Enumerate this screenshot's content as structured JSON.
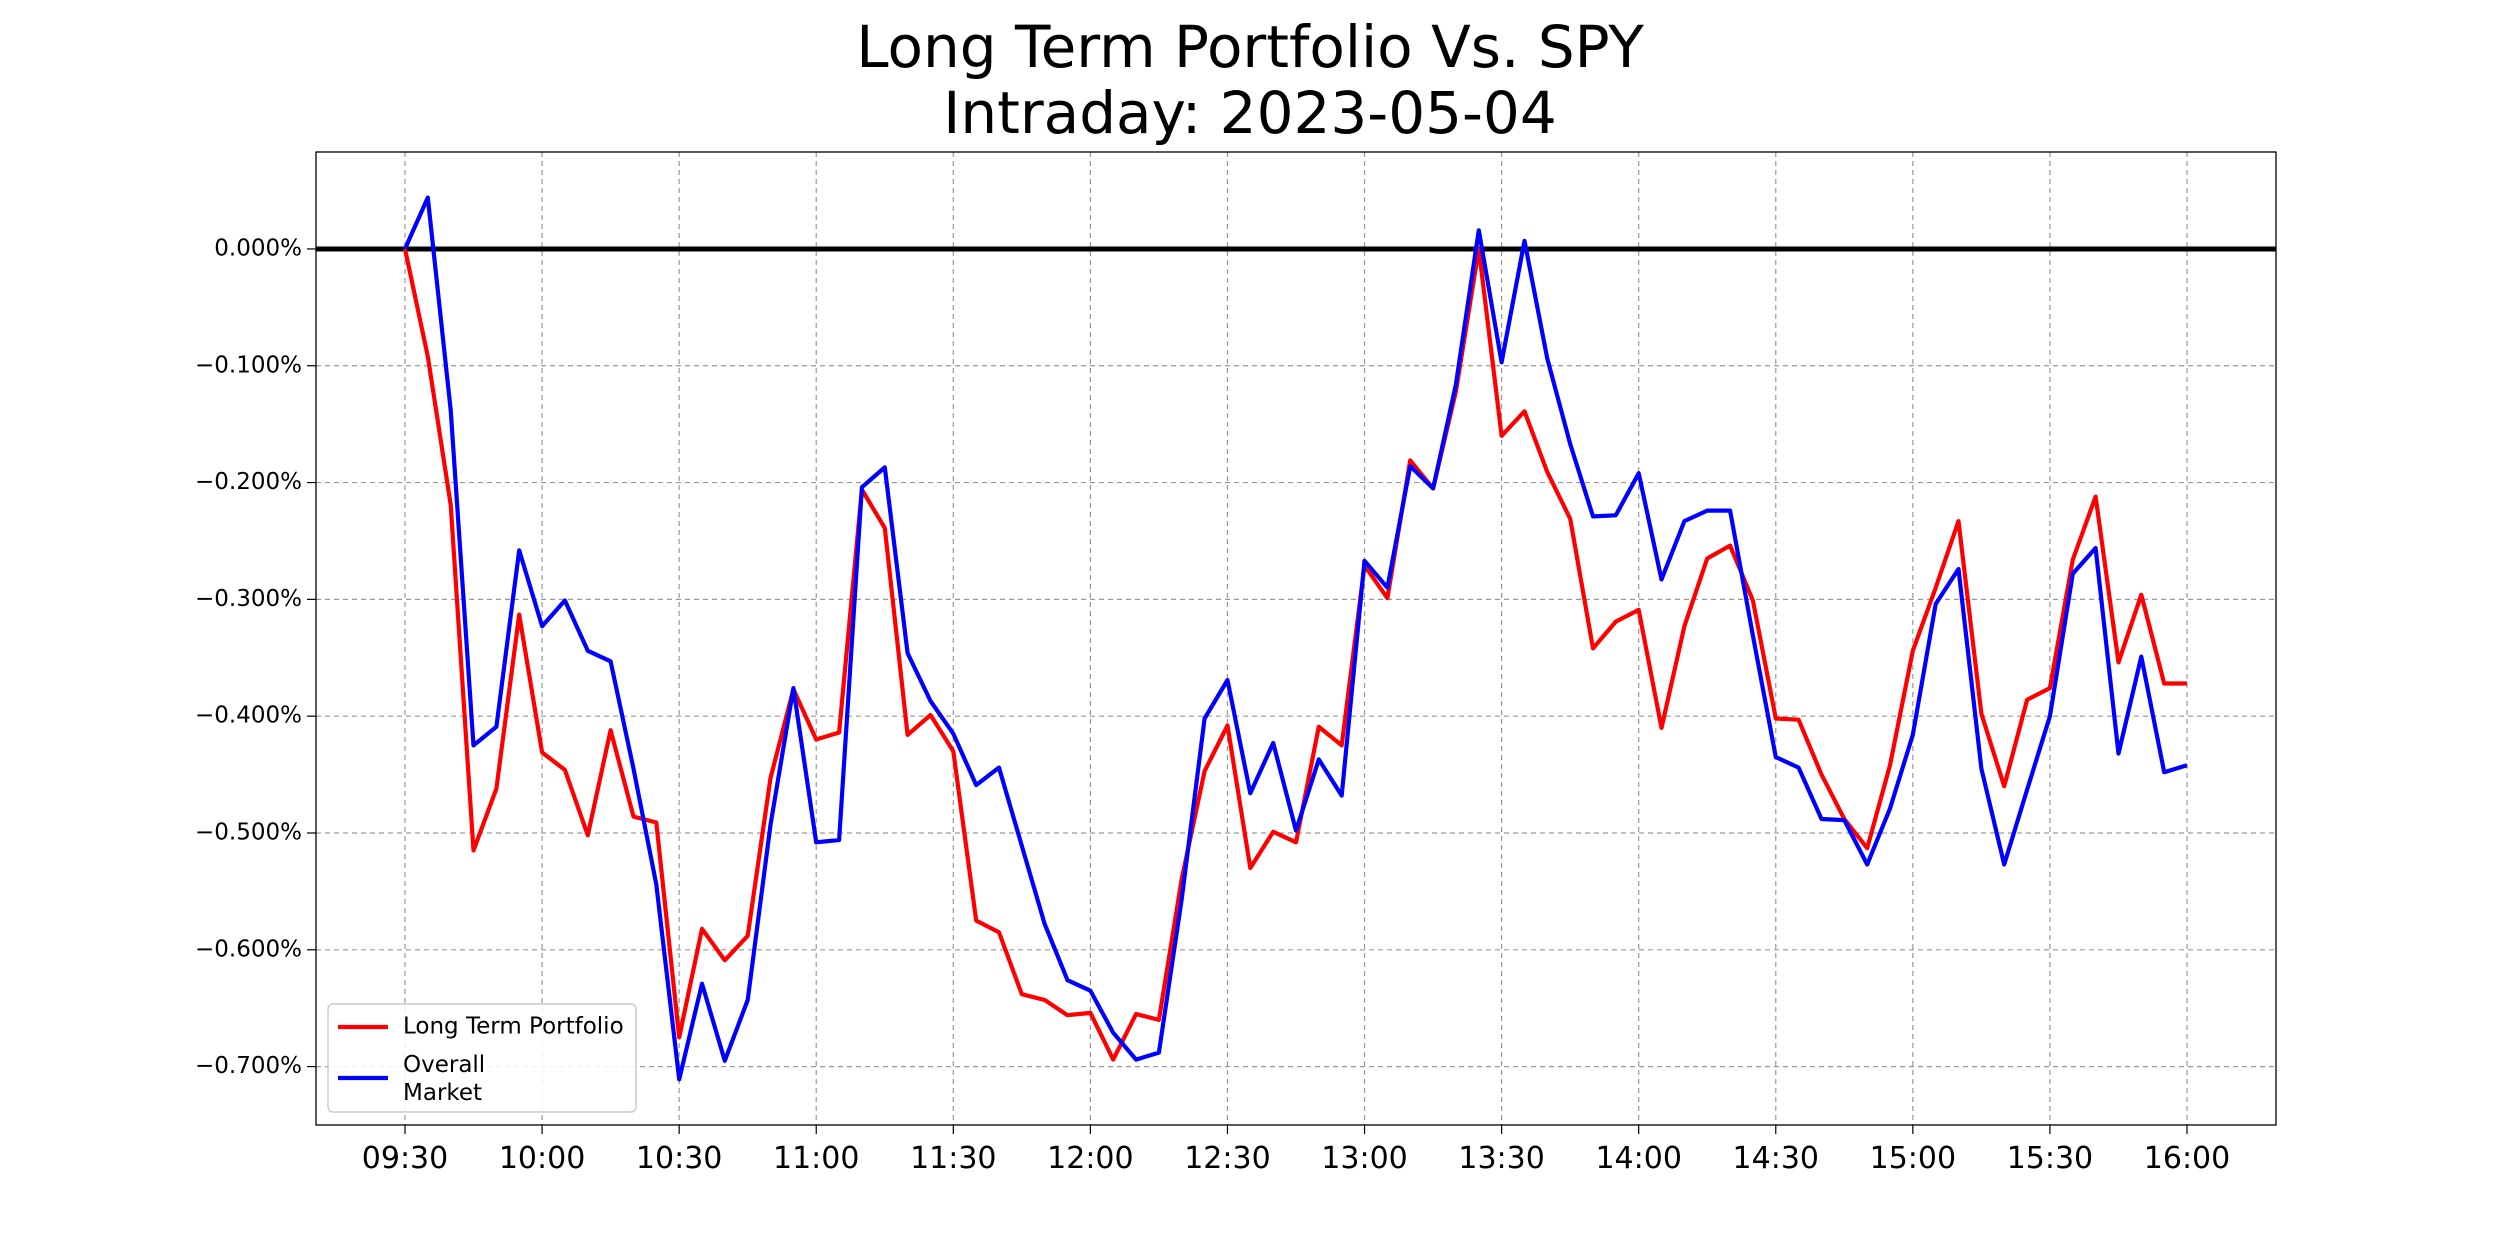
{
  "chart_data": {
    "type": "line",
    "title": "Long Term Portfolio Vs. SPY",
    "subtitle": "Intraday: 2023-05-04",
    "xlabel": "",
    "ylabel": "",
    "x_ticks": [
      "09:30",
      "10:00",
      "10:30",
      "11:00",
      "11:30",
      "12:00",
      "12:30",
      "13:00",
      "13:30",
      "14:00",
      "14:30",
      "15:00",
      "15:30",
      "16:00"
    ],
    "x_interval_minutes": 5,
    "x_start": "09:30",
    "y_ticks": [
      "0.000%",
      "−0.100%",
      "−0.200%",
      "−0.300%",
      "−0.400%",
      "−0.500%",
      "−0.600%",
      "−0.700%"
    ],
    "y_tick_values": [
      0,
      -0.1,
      -0.2,
      -0.3,
      -0.4,
      -0.5,
      -0.6,
      -0.7
    ],
    "ylim": [
      -0.75,
      0.083
    ],
    "grid": true,
    "grid_style": "dashed",
    "reference_line": 0,
    "legend_position": "lower-left",
    "series": [
      {
        "name": "Long Term Portfolio",
        "color": "#ff0000",
        "values": [
          0.0,
          -0.092,
          -0.219,
          -0.515,
          -0.462,
          -0.313,
          -0.431,
          -0.446,
          -0.502,
          -0.412,
          -0.486,
          -0.491,
          -0.675,
          -0.582,
          -0.609,
          -0.588,
          -0.453,
          -0.377,
          -0.42,
          -0.414,
          -0.206,
          -0.239,
          -0.416,
          -0.399,
          -0.43,
          -0.575,
          -0.585,
          -0.638,
          -0.643,
          -0.656,
          -0.654,
          -0.694,
          -0.655,
          -0.66,
          -0.539,
          -0.447,
          -0.408,
          -0.53,
          -0.499,
          -0.508,
          -0.409,
          -0.425,
          -0.271,
          -0.299,
          -0.181,
          -0.205,
          -0.122,
          0.0,
          -0.16,
          -0.139,
          -0.191,
          -0.231,
          -0.342,
          -0.319,
          -0.309,
          -0.41,
          -0.323,
          -0.265,
          -0.254,
          -0.301,
          -0.402,
          -0.403,
          -0.45,
          -0.488,
          -0.513,
          -0.442,
          -0.344,
          -0.29,
          -0.233,
          -0.398,
          -0.46,
          -0.386,
          -0.376,
          -0.266,
          -0.212,
          -0.354,
          -0.296,
          -0.372,
          -0.372
        ]
      },
      {
        "name": "Overall\nMarket",
        "color": "#0000ff",
        "values": [
          0.0,
          0.044,
          -0.138,
          -0.425,
          -0.409,
          -0.258,
          -0.323,
          -0.301,
          -0.344,
          -0.353,
          -0.445,
          -0.544,
          -0.711,
          -0.629,
          -0.695,
          -0.643,
          -0.493,
          -0.376,
          -0.508,
          -0.506,
          -0.204,
          -0.187,
          -0.346,
          -0.387,
          -0.415,
          -0.459,
          -0.444,
          -0.511,
          -0.578,
          -0.626,
          -0.635,
          -0.671,
          -0.694,
          -0.688,
          -0.556,
          -0.402,
          -0.369,
          -0.466,
          -0.423,
          -0.498,
          -0.437,
          -0.468,
          -0.267,
          -0.29,
          -0.186,
          -0.205,
          -0.116,
          0.016,
          -0.097,
          0.007,
          -0.094,
          -0.167,
          -0.229,
          -0.228,
          -0.192,
          -0.283,
          -0.233,
          -0.224,
          -0.224,
          -0.331,
          -0.435,
          -0.444,
          -0.488,
          -0.489,
          -0.527,
          -0.479,
          -0.416,
          -0.304,
          -0.274,
          -0.445,
          -0.527,
          -0.463,
          -0.4,
          -0.278,
          -0.256,
          -0.432,
          -0.349,
          -0.448,
          -0.442
        ]
      }
    ]
  }
}
